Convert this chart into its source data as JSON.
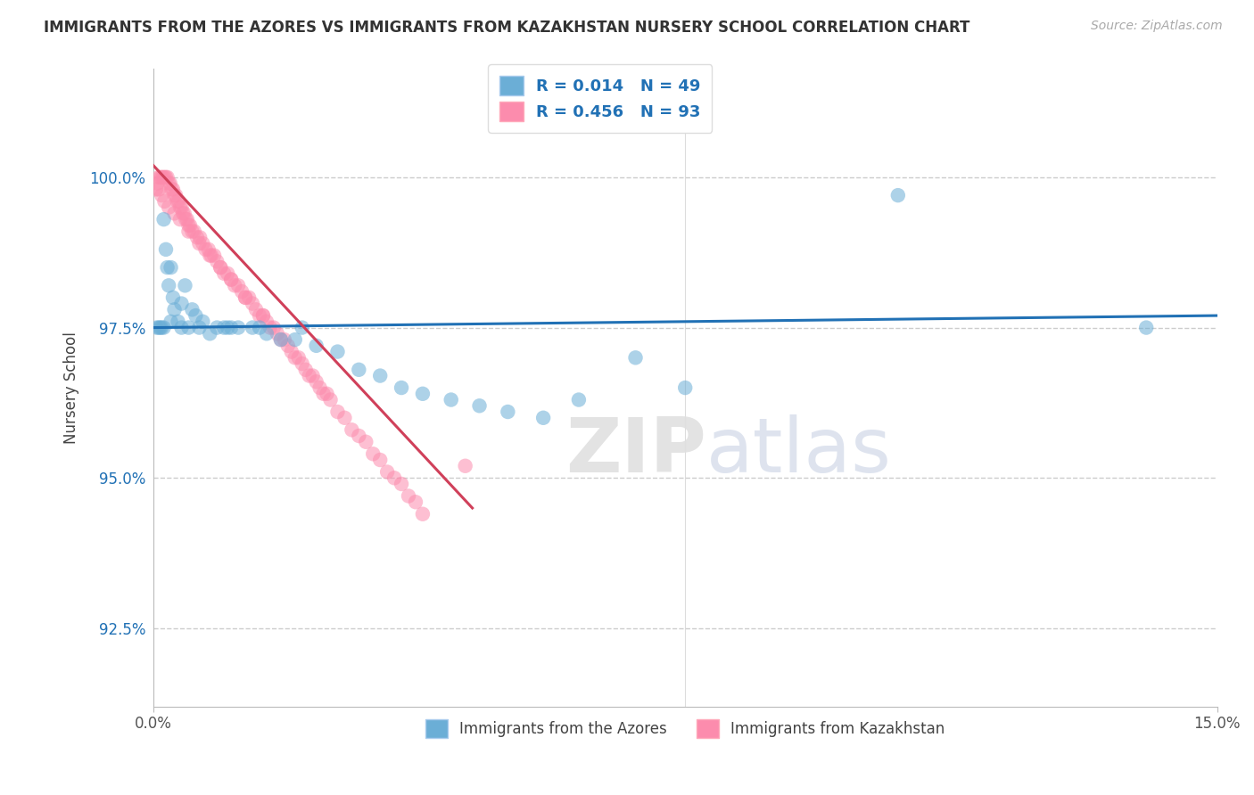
{
  "title": "IMMIGRANTS FROM THE AZORES VS IMMIGRANTS FROM KAZAKHSTAN NURSERY SCHOOL CORRELATION CHART",
  "source": "Source: ZipAtlas.com",
  "ylabel": "Nursery School",
  "ytick_labels": [
    "92.5%",
    "95.0%",
    "97.5%",
    "100.0%"
  ],
  "ytick_values": [
    92.5,
    95.0,
    97.5,
    100.0
  ],
  "xlim": [
    0.0,
    15.0
  ],
  "ylim": [
    91.2,
    101.8
  ],
  "legend_bottom_blue": "Immigrants from the Azores",
  "legend_bottom_pink": "Immigrants from Kazakhstan",
  "blue_color": "#6BAED6",
  "pink_color": "#FC8CAD",
  "blue_line_color": "#2171B5",
  "pink_line_color": "#D0405A",
  "text_blue": "#2171B5",
  "blue_scatter_x": [
    0.05,
    0.08,
    0.1,
    0.12,
    0.15,
    0.18,
    0.2,
    0.22,
    0.25,
    0.28,
    0.3,
    0.35,
    0.4,
    0.45,
    0.5,
    0.55,
    0.6,
    0.7,
    0.8,
    0.9,
    1.0,
    1.1,
    1.2,
    1.4,
    1.6,
    1.8,
    2.0,
    2.3,
    2.6,
    2.9,
    3.2,
    3.5,
    3.8,
    4.2,
    4.6,
    5.0,
    5.5,
    6.0,
    6.8,
    7.5,
    0.15,
    0.25,
    0.4,
    0.65,
    1.05,
    1.5,
    2.1,
    10.5,
    14.0
  ],
  "blue_scatter_y": [
    97.5,
    97.5,
    97.5,
    97.5,
    99.3,
    98.8,
    98.5,
    98.2,
    98.5,
    98.0,
    97.8,
    97.6,
    97.9,
    98.2,
    97.5,
    97.8,
    97.7,
    97.6,
    97.4,
    97.5,
    97.5,
    97.5,
    97.5,
    97.5,
    97.4,
    97.3,
    97.3,
    97.2,
    97.1,
    96.8,
    96.7,
    96.5,
    96.4,
    96.3,
    96.2,
    96.1,
    96.0,
    96.3,
    97.0,
    96.5,
    97.5,
    97.6,
    97.5,
    97.5,
    97.5,
    97.5,
    97.5,
    99.7,
    97.5
  ],
  "pink_scatter_x": [
    0.04,
    0.06,
    0.08,
    0.1,
    0.12,
    0.14,
    0.16,
    0.18,
    0.2,
    0.22,
    0.24,
    0.26,
    0.28,
    0.3,
    0.32,
    0.34,
    0.36,
    0.38,
    0.4,
    0.42,
    0.44,
    0.46,
    0.48,
    0.5,
    0.52,
    0.55,
    0.58,
    0.62,
    0.66,
    0.7,
    0.74,
    0.78,
    0.82,
    0.86,
    0.9,
    0.95,
    1.0,
    1.05,
    1.1,
    1.15,
    1.2,
    1.25,
    1.3,
    1.35,
    1.4,
    1.45,
    1.5,
    1.55,
    1.6,
    1.65,
    1.7,
    1.75,
    1.8,
    1.85,
    1.9,
    1.95,
    2.0,
    2.05,
    2.1,
    2.15,
    2.2,
    2.25,
    2.3,
    2.35,
    2.4,
    2.45,
    2.5,
    2.6,
    2.7,
    2.8,
    2.9,
    3.0,
    3.1,
    3.2,
    3.3,
    3.4,
    3.5,
    3.6,
    3.7,
    3.8,
    0.08,
    0.12,
    0.16,
    0.22,
    0.3,
    0.38,
    0.5,
    0.65,
    0.8,
    0.95,
    1.1,
    1.3,
    1.55,
    4.4
  ],
  "pink_scatter_y": [
    99.8,
    99.9,
    100.0,
    100.0,
    100.0,
    100.0,
    100.0,
    100.0,
    100.0,
    99.9,
    99.9,
    99.8,
    99.8,
    99.7,
    99.7,
    99.6,
    99.6,
    99.5,
    99.5,
    99.4,
    99.4,
    99.3,
    99.3,
    99.2,
    99.2,
    99.1,
    99.1,
    99.0,
    99.0,
    98.9,
    98.8,
    98.8,
    98.7,
    98.7,
    98.6,
    98.5,
    98.4,
    98.4,
    98.3,
    98.2,
    98.2,
    98.1,
    98.0,
    98.0,
    97.9,
    97.8,
    97.7,
    97.7,
    97.6,
    97.5,
    97.5,
    97.4,
    97.3,
    97.3,
    97.2,
    97.1,
    97.0,
    97.0,
    96.9,
    96.8,
    96.7,
    96.7,
    96.6,
    96.5,
    96.4,
    96.4,
    96.3,
    96.1,
    96.0,
    95.8,
    95.7,
    95.6,
    95.4,
    95.3,
    95.1,
    95.0,
    94.9,
    94.7,
    94.6,
    94.4,
    99.8,
    99.7,
    99.6,
    99.5,
    99.4,
    99.3,
    99.1,
    98.9,
    98.7,
    98.5,
    98.3,
    98.0,
    97.7,
    95.2
  ],
  "blue_trend_x": [
    0.0,
    15.0
  ],
  "blue_trend_y": [
    97.5,
    97.7
  ],
  "pink_trend_x": [
    0.0,
    4.5
  ],
  "pink_trend_y": [
    100.2,
    94.5
  ]
}
